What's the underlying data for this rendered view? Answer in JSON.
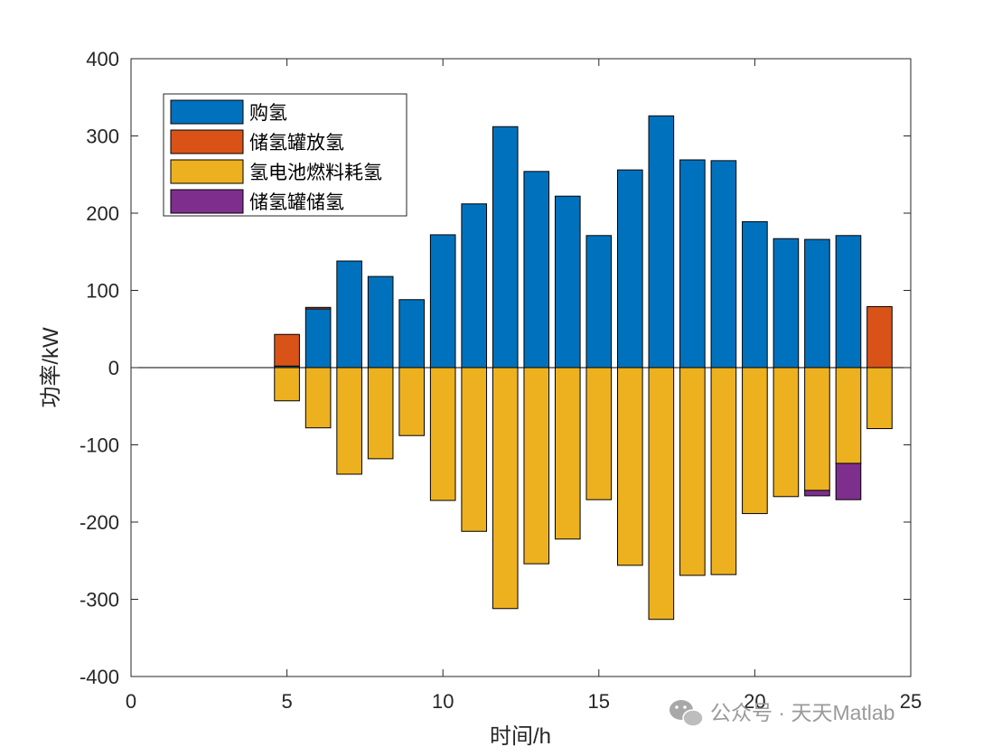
{
  "chart_data": {
    "type": "bar",
    "stacked": true,
    "xlabel": "时间/h",
    "ylabel": "功率/kW",
    "xlim": [
      0,
      25
    ],
    "ylim": [
      -400,
      400
    ],
    "xticks": [
      0,
      5,
      10,
      15,
      20,
      25
    ],
    "yticks": [
      -400,
      -300,
      -200,
      -100,
      0,
      100,
      200,
      300,
      400
    ],
    "grid": false,
    "legend_position": "top-left",
    "x": [
      1,
      2,
      3,
      4,
      5,
      6,
      7,
      8,
      9,
      10,
      11,
      12,
      13,
      14,
      15,
      16,
      17,
      18,
      19,
      20,
      21,
      22,
      23,
      24
    ],
    "series": [
      {
        "name": "购氢",
        "color": "#0072BD",
        "values": [
          0,
          0,
          0,
          0,
          2,
          76,
          138,
          118,
          88,
          172,
          212,
          312,
          254,
          222,
          171,
          256,
          326,
          269,
          268,
          189,
          167,
          166,
          171,
          0
        ]
      },
      {
        "name": "储氢罐放氢",
        "color": "#D95319",
        "values": [
          0,
          0,
          0,
          0,
          41,
          2,
          0,
          0,
          0,
          0,
          0,
          0,
          0,
          0,
          0,
          0,
          0,
          0,
          0,
          0,
          0,
          0,
          0,
          79
        ]
      },
      {
        "name": "氢电池燃料耗氢",
        "color": "#EDB120",
        "values": [
          0,
          0,
          0,
          0,
          -43,
          -78,
          -138,
          -118,
          -88,
          -172,
          -212,
          -312,
          -254,
          -222,
          -171,
          -256,
          -326,
          -269,
          -268,
          -189,
          -167,
          -159,
          -124,
          -79
        ]
      },
      {
        "name": "储氢罐储氢",
        "color": "#7E2F8E",
        "values": [
          0,
          0,
          0,
          0,
          0,
          0,
          0,
          0,
          0,
          0,
          0,
          0,
          0,
          0,
          0,
          0,
          0,
          0,
          0,
          0,
          0,
          -7,
          -47,
          0
        ]
      }
    ]
  },
  "watermark": {
    "text": "公众号 · 天天Matlab",
    "icon": "wechat-icon"
  }
}
